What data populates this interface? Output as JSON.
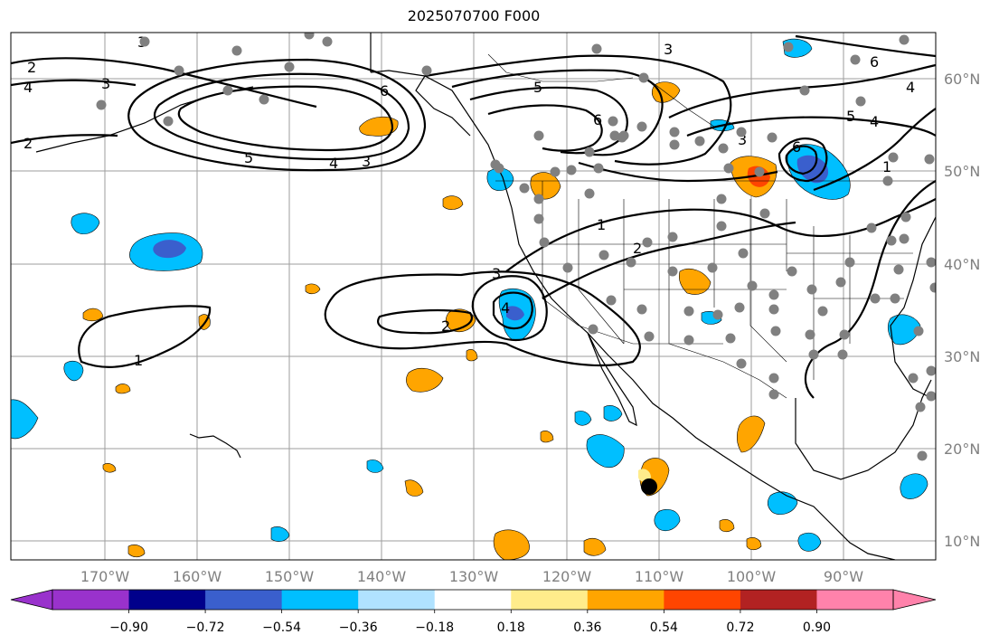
{
  "title": "2025070700 F000",
  "lon_labels": [
    "170°W",
    "160°W",
    "150°W",
    "140°W",
    "130°W",
    "120°W",
    "110°W",
    "100°W",
    "90°W"
  ],
  "lat_labels": [
    "60°N",
    "50°N",
    "40°N",
    "30°N",
    "20°N",
    "10°N"
  ],
  "colorbar": {
    "tick_labels": [
      "−0.90",
      "−0.72",
      "−0.54",
      "−0.36",
      "−0.18",
      "0.18",
      "0.36",
      "0.54",
      "0.72",
      "0.90"
    ],
    "colors": [
      "#9932cc",
      "#00008b",
      "#3a5fcd",
      "#00bfff",
      "#b0e2ff",
      "#ffffff",
      "#ffec8b",
      "#ffa500",
      "#ff4500",
      "#b22222",
      "#ff82ab"
    ]
  },
  "colors": {
    "contour": "#000000",
    "grid": "#9e9e9e",
    "station": "#808080",
    "storm_marker": "#000000",
    "coast": "#000000"
  },
  "contour_labels": [
    "1",
    "2",
    "3",
    "4",
    "5",
    "6"
  ]
}
